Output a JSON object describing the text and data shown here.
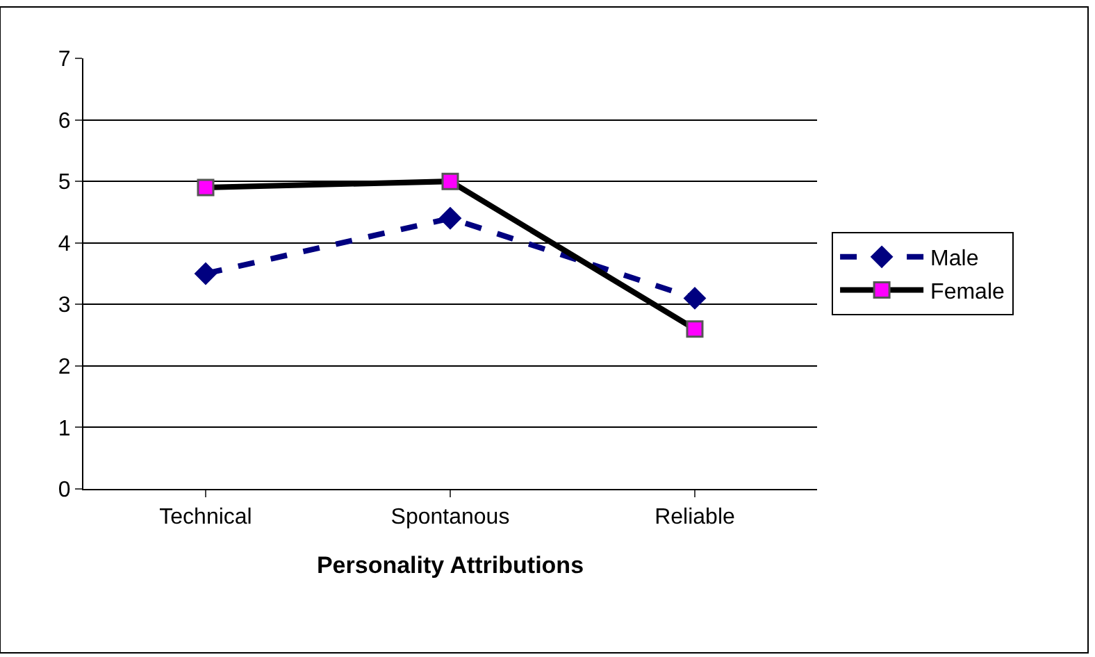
{
  "chart_data": {
    "type": "line",
    "xlabel": "Personality Attributions",
    "categories": [
      "Technical",
      "Spontanous",
      "Reliable"
    ],
    "series": [
      {
        "name": "Male",
        "color": "#000080",
        "values": [
          3.5,
          4.4,
          3.1
        ],
        "marker": "diamond",
        "line_style": "dashed"
      },
      {
        "name": "Female",
        "color": "#000000",
        "values": [
          4.9,
          5.0,
          2.6
        ],
        "marker": "square",
        "line_style": "solid"
      }
    ],
    "ylim": [
      0,
      7
    ],
    "yticks": [
      0,
      1,
      2,
      3,
      4,
      5,
      6,
      7
    ],
    "grid": "y",
    "legend": "right"
  }
}
